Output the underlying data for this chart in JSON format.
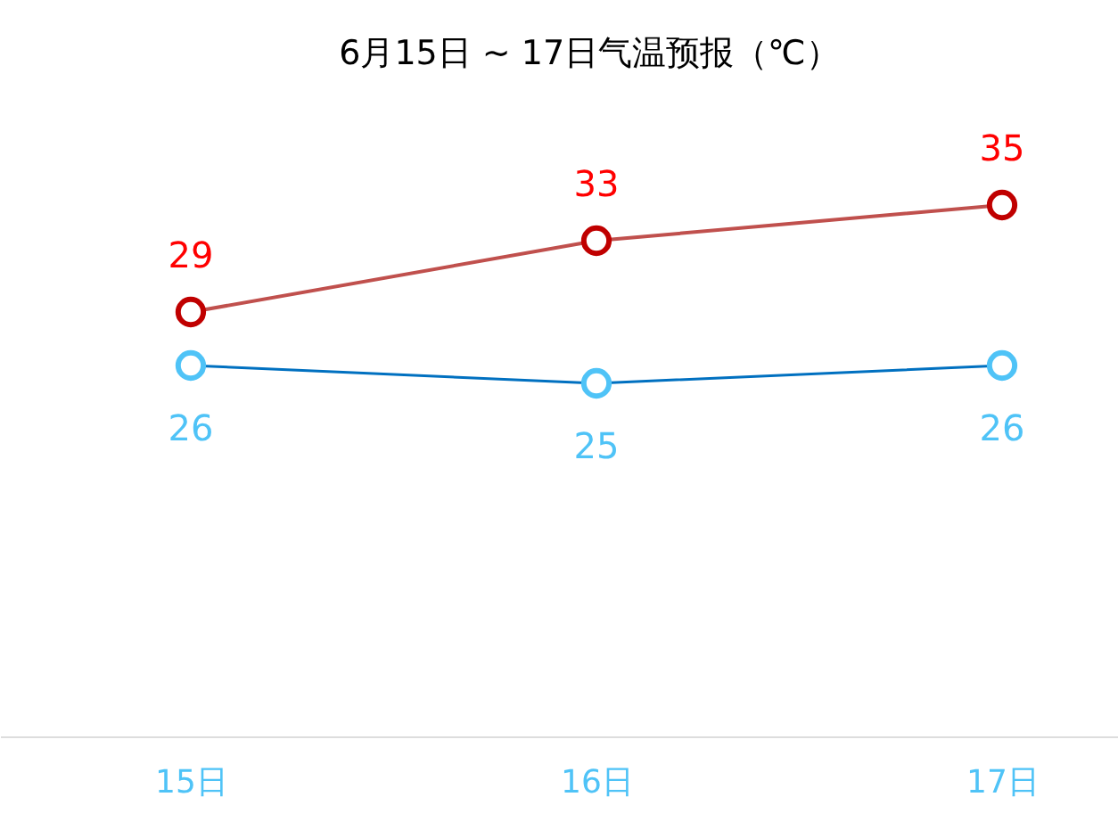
{
  "chart_data": {
    "type": "line",
    "title": "6月15日 ~ 17日气温预报（℃）",
    "categories": [
      "15日",
      "16日",
      "17日"
    ],
    "series": [
      {
        "color": "#c0504d",
        "values": [
          29,
          33,
          35
        ]
      },
      {
        "color": "#0070c0",
        "values": [
          26,
          25,
          26
        ]
      }
    ],
    "data_labels": true,
    "marker": "circle",
    "line_style": "solid",
    "grid": false
  }
}
